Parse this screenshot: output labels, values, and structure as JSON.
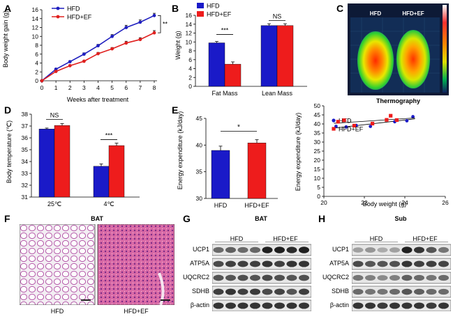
{
  "panels": {
    "A": {
      "letter": "A",
      "chart_data": {
        "type": "line",
        "ylabel": "Body weight gain (g)",
        "xlabel": "Weeks after treatment",
        "x": [
          0,
          1,
          2,
          3,
          4,
          5,
          6,
          7,
          8
        ],
        "xticks": [
          "0",
          "1",
          "2",
          "3",
          "4",
          "5",
          "6",
          "7",
          "8"
        ],
        "yticks": [
          "0",
          "2",
          "4",
          "6",
          "8",
          "10",
          "12",
          "14",
          "16"
        ],
        "ylim": [
          0,
          16
        ],
        "series": [
          {
            "name": "HFD",
            "color": "#1f1fbf",
            "values": [
              0,
              2.6,
              4.3,
              6.0,
              7.9,
              10.0,
              12.0,
              13.2,
              14.7
            ],
            "err": [
              0,
              0.2,
              0.2,
              0.3,
              0.3,
              0.4,
              0.5,
              0.5,
              0.5
            ]
          },
          {
            "name": "HFD+EF",
            "color": "#e0201f",
            "values": [
              0,
              2.1,
              3.4,
              4.4,
              6.1,
              7.2,
              8.5,
              9.3,
              10.8
            ],
            "err": [
              0,
              0.2,
              0.2,
              0.2,
              0.3,
              0.3,
              0.4,
              0.4,
              0.5
            ]
          }
        ],
        "significance": "**"
      }
    },
    "B": {
      "letter": "B",
      "chart_data": {
        "type": "bar",
        "ylabel": "Weight (g)",
        "categories": [
          "Fat Mass",
          "Lean  Mass"
        ],
        "yticks": [
          "0",
          "2",
          "4",
          "6",
          "8",
          "10",
          "12",
          "14",
          "16"
        ],
        "ylim": [
          0,
          16
        ],
        "series": [
          {
            "name": "HFD",
            "color": "#1a1ac8",
            "values": [
              9.8,
              13.7
            ],
            "err": [
              0.3,
              0.4
            ]
          },
          {
            "name": "HFD+EF",
            "color": "#ee1c1c",
            "values": [
              5.0,
              13.7
            ],
            "err": [
              0.5,
              0.4
            ]
          }
        ],
        "significance": [
          "***",
          "NS"
        ]
      }
    },
    "C": {
      "letter": "C",
      "labels": [
        "HFD",
        "HFD+EF"
      ],
      "caption": "Thermography"
    },
    "D": {
      "letter": "D",
      "chart_data": {
        "type": "bar",
        "ylabel": "Body temperature (℃)",
        "categories": [
          "25℃",
          "4℃"
        ],
        "yticks": [
          "31",
          "32",
          "33",
          "34",
          "35",
          "36",
          "37",
          "38"
        ],
        "ylim": [
          31,
          38
        ],
        "series": [
          {
            "name": "HFD",
            "color": "#1a1ac8",
            "values": [
              36.75,
              33.6
            ],
            "err": [
              0.08,
              0.2
            ]
          },
          {
            "name": "HFD+EF",
            "color": "#ee1c1c",
            "values": [
              37.05,
              35.35
            ],
            "err": [
              0.15,
              0.2
            ]
          }
        ],
        "significance": [
          "NS",
          "***"
        ]
      }
    },
    "E": {
      "letter": "E",
      "bar_chart": {
        "type": "bar",
        "ylabel": "Energy expenditure (kJ/day)",
        "categories": [
          "HFD",
          "HFD+EF"
        ],
        "yticks": [
          "30",
          "35",
          "40",
          "45"
        ],
        "ylim": [
          30,
          45
        ],
        "values": [
          39.0,
          40.4
        ],
        "colors": [
          "#1a1ac8",
          "#ee1c1c"
        ],
        "err": [
          0.8,
          0.6
        ],
        "significance": "*"
      },
      "scatter_chart": {
        "type": "scatter",
        "ylabel": "Energy expenditure (kJ/day)",
        "xlabel": "Body weight (g)",
        "xticks": [
          "20",
          "22",
          "24",
          "26"
        ],
        "yticks": [
          "0",
          "5",
          "10",
          "15",
          "20",
          "25",
          "30",
          "35",
          "40",
          "45",
          "50"
        ],
        "xlim": [
          20,
          26
        ],
        "ylim": [
          0,
          50
        ],
        "series": [
          {
            "name": "HFD",
            "color": "#1a1ac8",
            "marker": "circle",
            "points": [
              [
                20.6,
                37.5
              ],
              [
                21.1,
                37.2
              ],
              [
                21.6,
                38.0
              ],
              [
                22.3,
                37.5
              ],
              [
                23.5,
                40.0
              ],
              [
                24.1,
                40.5
              ],
              [
                24.4,
                42.7
              ]
            ]
          },
          {
            "name": "HFD+EF",
            "color": "#ee1c1c",
            "marker": "square",
            "points": [
              [
                20.7,
                40.0
              ],
              [
                21.0,
                40.8
              ],
              [
                21.5,
                37.9
              ],
              [
                22.4,
                39.0
              ],
              [
                23.1,
                41.0
              ],
              [
                23.3,
                43.2
              ],
              [
                23.6,
                40.9
              ]
            ]
          }
        ]
      }
    },
    "F": {
      "letter": "F",
      "title": "BAT",
      "labels": [
        "HFD",
        "HFD+EF"
      ]
    },
    "G": {
      "letter": "G",
      "title": "BAT",
      "groups": [
        "HFD",
        "HFD+EF"
      ],
      "proteins": [
        "UCP1",
        "ATP5A",
        "UQCRC2",
        "SDHB",
        "β-actin"
      ]
    },
    "H": {
      "letter": "H",
      "title": "Sub",
      "groups": [
        "HFD",
        "HFD+EF"
      ],
      "proteins": [
        "UCP1",
        "ATP5A",
        "UQCRC2",
        "SDHB",
        "β-actin"
      ]
    }
  }
}
